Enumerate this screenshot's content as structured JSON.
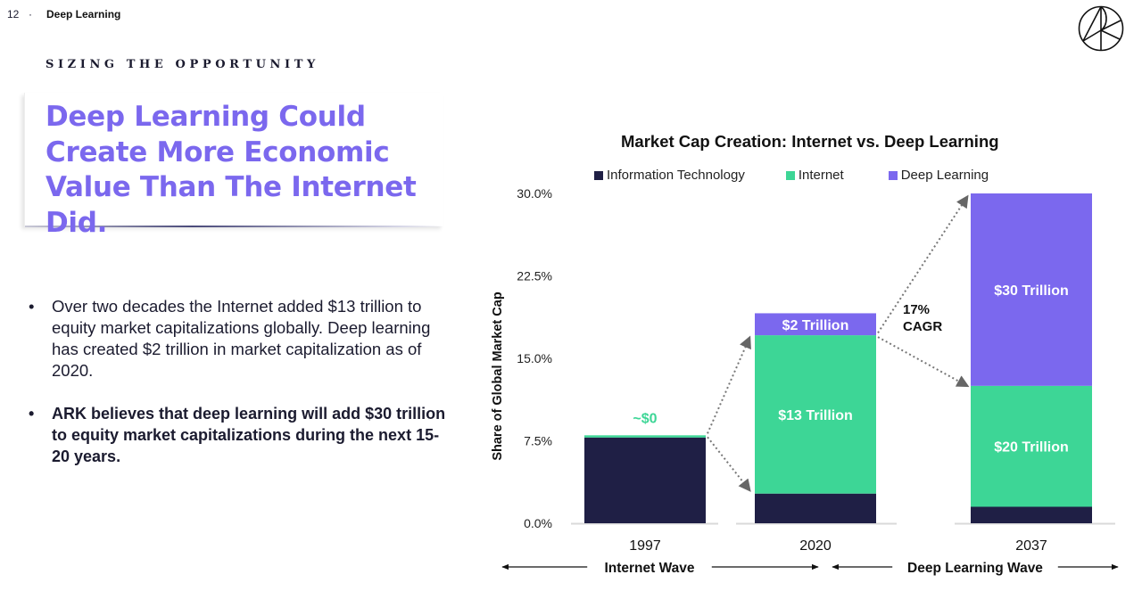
{
  "header": {
    "page_number": "12",
    "separator": "·",
    "section": "Deep Learning",
    "logo_icon": "ark-logo-icon"
  },
  "eyebrow": "SIZING THE OPPORTUNITY",
  "headline": "Deep Learning Could Create More Economic Value Than The Internet Did.",
  "bullets": [
    {
      "marker": "•",
      "text": "Over two decades the Internet added $13 trillion to equity market capitalizations globally. Deep learning has created $2 trillion in market capitalization as of 2020."
    },
    {
      "marker": "•",
      "text": "ARK believes that deep learning will add $30 trillion to equity market capitalizations during the next 15-20 years."
    }
  ],
  "colors": {
    "it": "#1f1f45",
    "internet": "#3dd696",
    "deep_learning": "#7b68ee",
    "headline": "#7b68ee"
  },
  "chart_data": {
    "type": "bar",
    "stacked": true,
    "title": "Market Cap Creation: Internet vs. Deep Learning",
    "xlabel": "",
    "ylabel": "Share of Global Market Cap",
    "ylim": [
      0,
      30
    ],
    "yticks": [
      0,
      7.5,
      15,
      22.5,
      30
    ],
    "ytick_labels": [
      "0.0%",
      "7.5%",
      "15.0%",
      "22.5%",
      "30.0%"
    ],
    "grid": false,
    "legend_position": "top",
    "categories": [
      "1997",
      "2020",
      "2037"
    ],
    "series": [
      {
        "name": "Information Technology",
        "color": "#1f1f45",
        "values": [
          7.8,
          2.7,
          1.5
        ],
        "labels": [
          "",
          "",
          ""
        ]
      },
      {
        "name": "Internet",
        "color": "#3dd696",
        "values": [
          0.2,
          14.4,
          11.0
        ],
        "labels": [
          "~$0",
          "$13 Trillion",
          "$20 Trillion"
        ]
      },
      {
        "name": "Deep Learning",
        "color": "#7b68ee",
        "values": [
          0,
          2.0,
          17.5
        ],
        "labels": [
          "",
          "$2 Trillion",
          "$30 Trillion"
        ]
      }
    ],
    "annotations": {
      "cagr": [
        "17%",
        "CAGR"
      ],
      "waves": [
        {
          "label": "Internet Wave",
          "from": "1997",
          "to": "2020"
        },
        {
          "label": "Deep Learning Wave",
          "from": "2020",
          "to": "2037"
        }
      ]
    }
  }
}
